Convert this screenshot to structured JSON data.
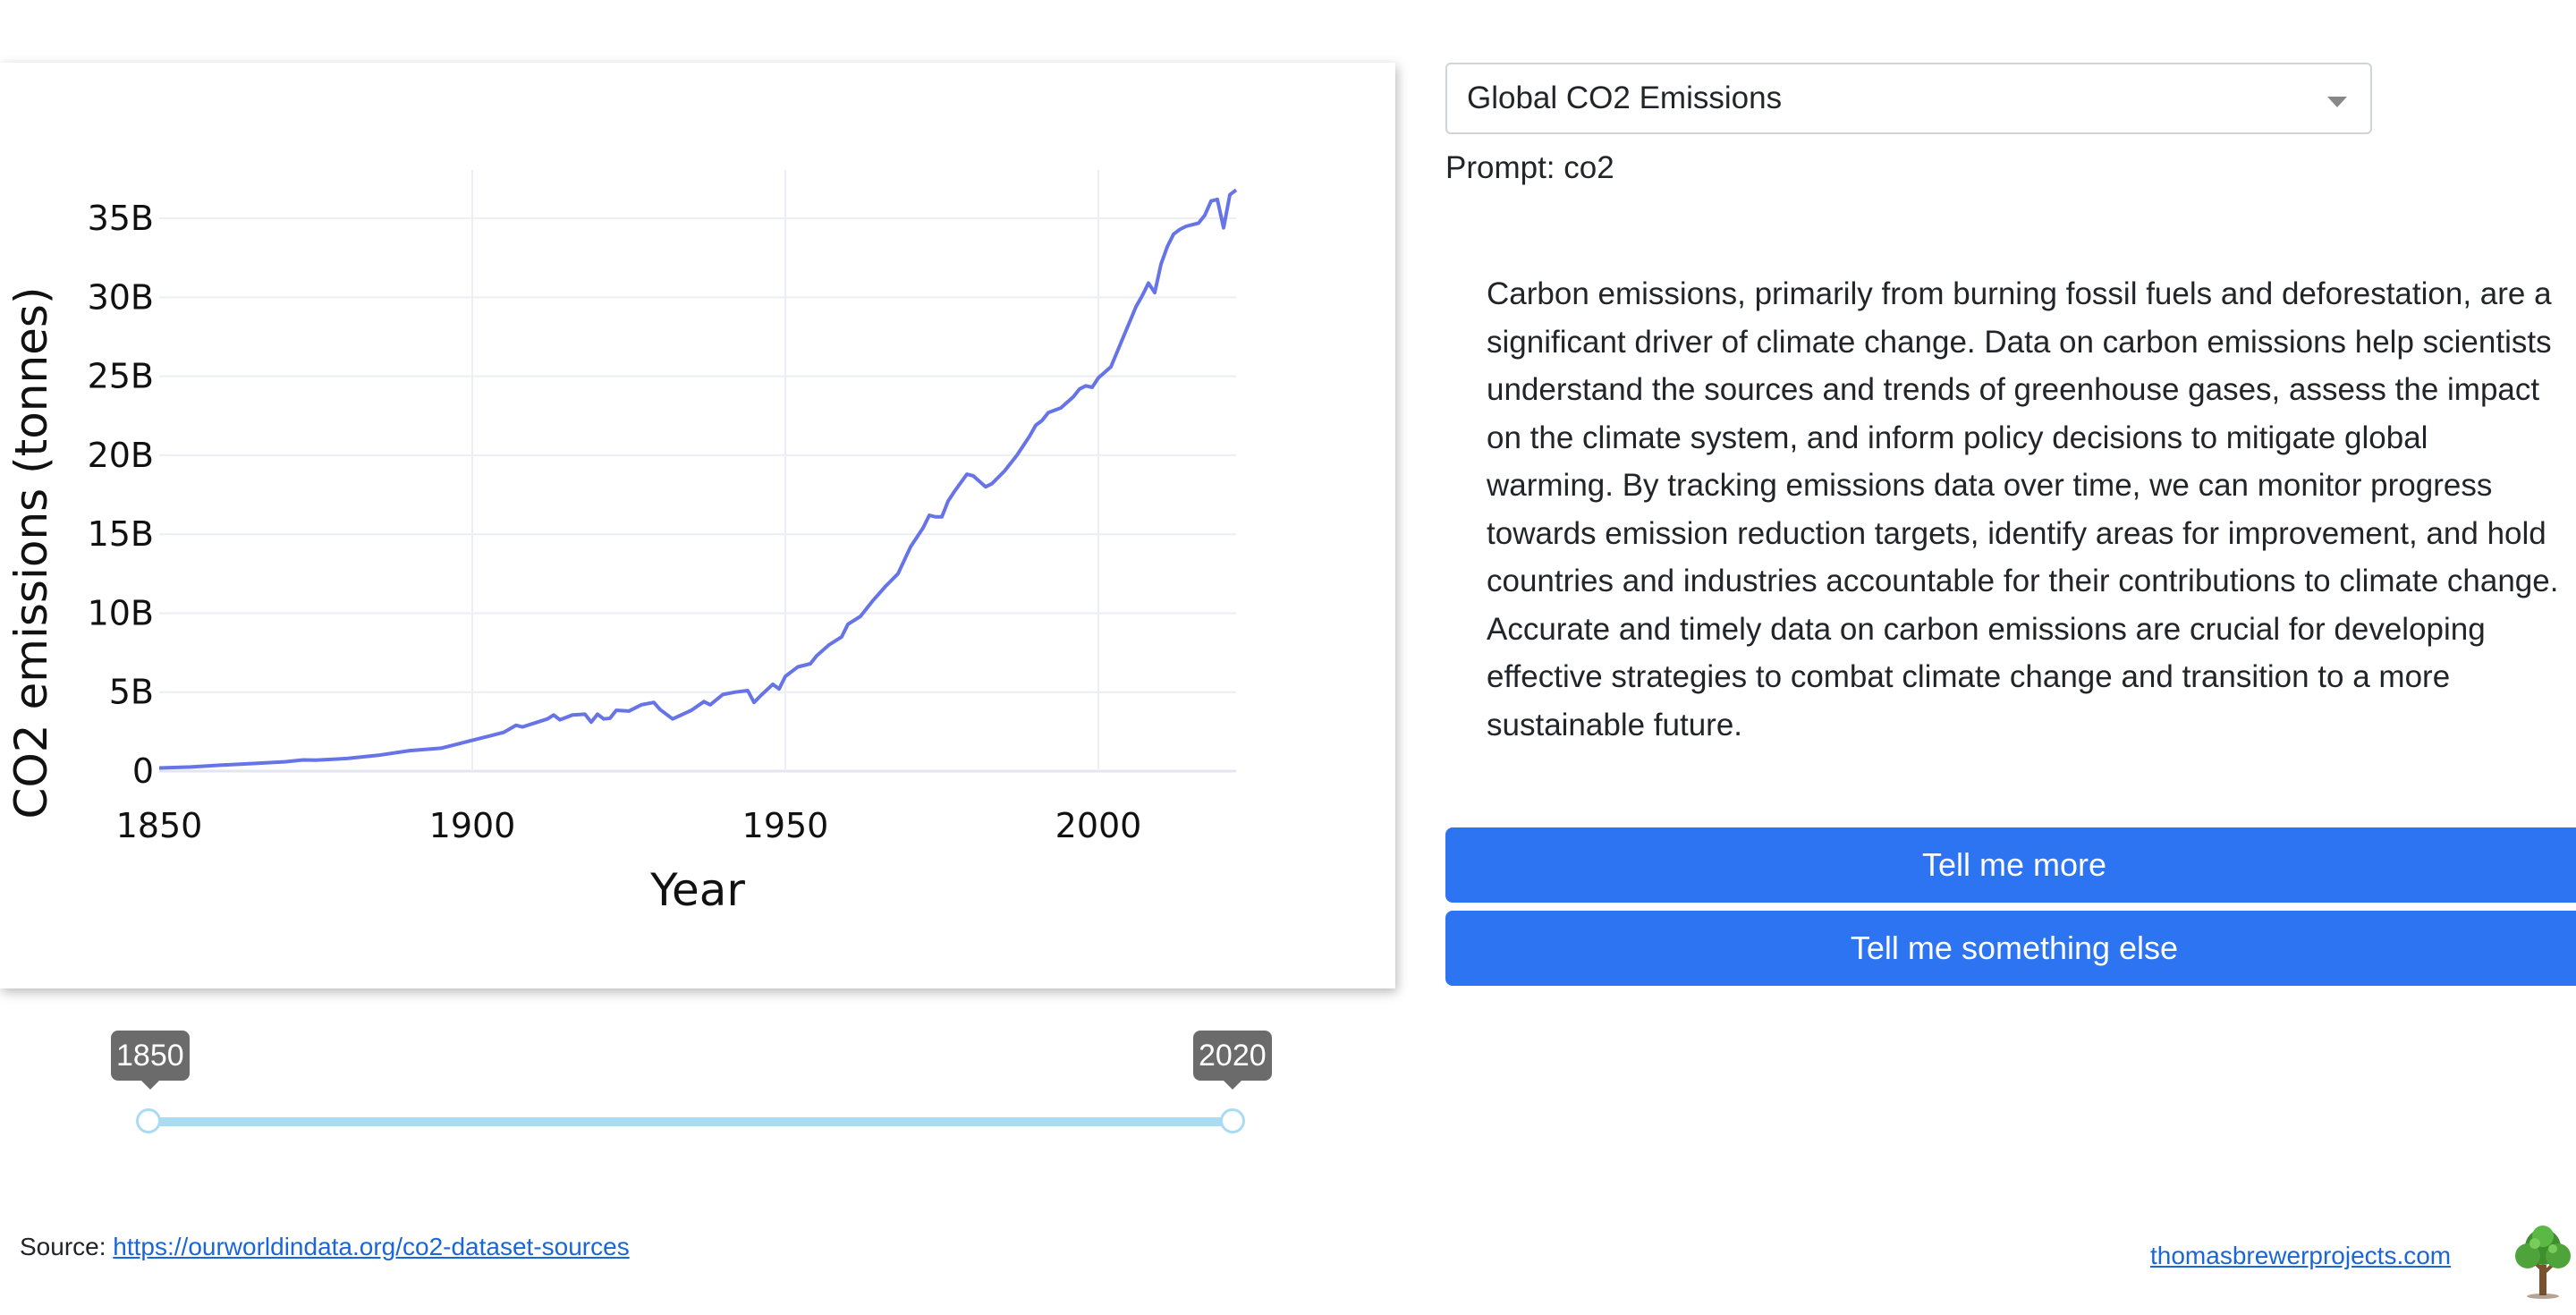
{
  "chart_data": {
    "type": "line",
    "xlabel": "Year",
    "ylabel": "CO2 emissions (tonnes)",
    "xlim": [
      1850,
      2022
    ],
    "ylim": [
      0,
      37500000000
    ],
    "x_ticks": [
      1850,
      1900,
      1950,
      2000
    ],
    "x_tick_labels": [
      "1850",
      "1900",
      "1950",
      "2000"
    ],
    "y_ticks": [
      0,
      5000000000,
      10000000000,
      15000000000,
      20000000000,
      25000000000,
      30000000000,
      35000000000
    ],
    "y_tick_labels": [
      "0",
      "5B",
      "10B",
      "15B",
      "20B",
      "25B",
      "30B",
      "35B"
    ],
    "grid": true,
    "line_color": "#6674e8",
    "series": [
      {
        "x": [
          1850,
          1855,
          1860,
          1865,
          1870,
          1873,
          1875,
          1880,
          1885,
          1890,
          1895,
          1900,
          1903,
          1905,
          1907,
          1908,
          1910,
          1912,
          1913,
          1914,
          1916,
          1918,
          1919,
          1920,
          1921,
          1922,
          1923,
          1925,
          1927,
          1929,
          1930,
          1932,
          1935,
          1937,
          1938,
          1940,
          1942,
          1944,
          1945,
          1946,
          1948,
          1949,
          1950,
          1952,
          1954,
          1955,
          1957,
          1959,
          1960,
          1962,
          1964,
          1966,
          1968,
          1970,
          1972,
          1973,
          1974,
          1975,
          1976,
          1977,
          1979,
          1980,
          1982,
          1983,
          1985,
          1987,
          1989,
          1990,
          1991,
          1992,
          1994,
          1996,
          1997,
          1998,
          1999,
          2000,
          2002,
          2004,
          2006,
          2007,
          2008,
          2009,
          2010,
          2011,
          2012,
          2013,
          2014,
          2015,
          2016,
          2017,
          2018,
          2019,
          2020,
          2021,
          2022
        ],
        "y": [
          200000000,
          260000000,
          380000000,
          480000000,
          590000000,
          710000000,
          690000000,
          800000000,
          1000000000,
          1300000000,
          1450000000,
          1950000000,
          2250000000,
          2450000000,
          2900000000,
          2800000000,
          3050000000,
          3300000000,
          3550000000,
          3250000000,
          3550000000,
          3600000000,
          3100000000,
          3600000000,
          3300000000,
          3350000000,
          3850000000,
          3800000000,
          4200000000,
          4350000000,
          3900000000,
          3300000000,
          3850000000,
          4400000000,
          4200000000,
          4850000000,
          5000000000,
          5100000000,
          4350000000,
          4750000000,
          5500000000,
          5200000000,
          6000000000,
          6600000000,
          6800000000,
          7300000000,
          8000000000,
          8500000000,
          9300000000,
          9800000000,
          10800000000,
          11700000000,
          12500000000,
          14200000000,
          15400000000,
          16200000000,
          16100000000,
          16100000000,
          17100000000,
          17700000000,
          18800000000,
          18700000000,
          18000000000,
          18200000000,
          19000000000,
          20000000000,
          21200000000,
          21900000000,
          22200000000,
          22700000000,
          23000000000,
          23700000000,
          24200000000,
          24400000000,
          24300000000,
          24900000000,
          25600000000,
          27500000000,
          29400000000,
          30100000000,
          30900000000,
          30300000000,
          32100000000,
          33200000000,
          34000000000,
          34300000000,
          34500000000,
          34600000000,
          34700000000,
          35200000000,
          36100000000,
          36200000000,
          34400000000,
          36500000000,
          36800000000
        ]
      }
    ]
  },
  "slider": {
    "start_label": "1850",
    "end_label": "2020",
    "start_value": 1850,
    "end_value": 2020,
    "color": "#a9dcf2"
  },
  "panel": {
    "dataset_selected": "Global CO2 Emissions",
    "prompt_text": "Prompt: co2",
    "description": "Carbon emissions, primarily from burning fossil fuels and deforestation, are a significant driver of climate change. Data on carbon emissions help scientists understand the sources and trends of greenhouse gases, assess the impact on the climate system, and inform policy decisions to mitigate global warming. By tracking emissions data over time, we can monitor progress towards emission reduction targets, identify areas for improvement, and hold countries and industries accountable for their contributions to climate change. Accurate and timely data on carbon emissions are crucial for developing effective strategies to combat climate change and transition to a more sustainable future.",
    "tell_more_label": "Tell me more",
    "tell_else_label": "Tell me something else",
    "button_color": "#2c74f2"
  },
  "footer": {
    "source_prefix": "Source: ",
    "source_link": "https://ourworldindata.org/co2-dataset-sources",
    "site_link": "thomasbrewerprojects.com",
    "logo_icon": "tree-icon"
  }
}
